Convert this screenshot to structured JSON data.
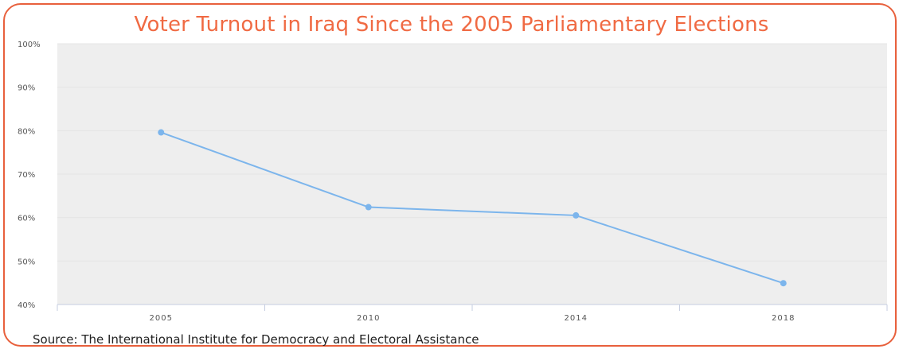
{
  "title": "Voter Turnout in Iraq Since the 2005 Parliamentary Elections",
  "source": "Source: The International Institute for Democracy and Electoral Assistance",
  "colors": {
    "title": "#f06a43",
    "frame": "#e8603c",
    "line": "#7cb5ec",
    "plot_background": "#eeeeee"
  },
  "chart_data": {
    "type": "line",
    "title": "Voter Turnout in Iraq Since the 2005 Parliamentary Elections",
    "xlabel": "",
    "ylabel": "",
    "categories": [
      "2005",
      "2010",
      "2014",
      "2018"
    ],
    "series": [
      {
        "values": [
          79.6,
          62.4,
          60.5,
          44.9
        ]
      }
    ],
    "ylim": [
      40,
      100
    ],
    "yticks": [
      40,
      50,
      60,
      70,
      80,
      90,
      100
    ],
    "ytick_labels": [
      "40%",
      "50%",
      "60%",
      "70%",
      "80%",
      "90%",
      "100%"
    ],
    "grid": true,
    "legend": "none"
  }
}
